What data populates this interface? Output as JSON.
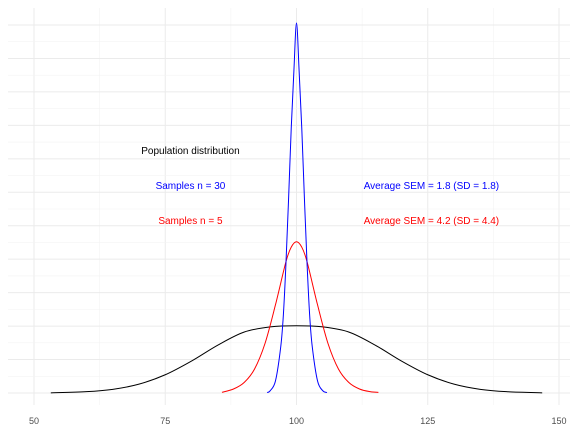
{
  "chart_data": {
    "type": "line",
    "title": "",
    "xlabel": "",
    "ylabel": "",
    "xlim": [
      50,
      150
    ],
    "ylim": [
      0,
      0.228
    ],
    "x_ticks": [
      50,
      75,
      100,
      125,
      150
    ],
    "x_tick_labels": [
      "50",
      "75",
      "100",
      "125",
      "150"
    ],
    "grid": true,
    "legend": "none",
    "series": [
      {
        "color": "#000000",
        "x": [
          53.2,
          60,
          65,
          70,
          75,
          80,
          85,
          90,
          95,
          100,
          105,
          110,
          115,
          120,
          125,
          130,
          135,
          140,
          146.8
        ],
        "y": [
          0.0001,
          0.0008,
          0.0022,
          0.0053,
          0.0109,
          0.0191,
          0.0286,
          0.0364,
          0.0395,
          0.0402,
          0.0395,
          0.0364,
          0.0286,
          0.0191,
          0.0109,
          0.0053,
          0.0022,
          0.0008,
          0.0001
        ]
      },
      {
        "color": "#ff0000",
        "x": [
          85.8,
          88,
          90,
          92,
          94,
          96,
          98,
          99,
          100,
          101,
          102,
          104,
          106,
          108,
          110,
          112,
          114,
          115.6
        ],
        "y": [
          0.0004,
          0.0024,
          0.0062,
          0.0143,
          0.0296,
          0.0528,
          0.0786,
          0.0872,
          0.0904,
          0.0872,
          0.0786,
          0.0528,
          0.0296,
          0.0143,
          0.0062,
          0.0024,
          0.0008,
          0.0004
        ]
      },
      {
        "color": "#0000ff",
        "x": [
          94.4,
          95,
          96,
          97,
          97.5,
          98,
          98.5,
          99,
          99.5,
          100,
          100.5,
          101,
          101.5,
          102,
          102.5,
          103,
          104,
          105,
          105.8
        ],
        "y": [
          0.0003,
          0.0014,
          0.0073,
          0.0277,
          0.0468,
          0.0781,
          0.1169,
          0.1586,
          0.1924,
          0.2212,
          0.1924,
          0.1586,
          0.1169,
          0.0781,
          0.0468,
          0.0277,
          0.0073,
          0.0014,
          0.0003
        ]
      }
    ],
    "annotations": [
      {
        "text": "Population distribution",
        "x": 79.8,
        "y": 0.1446,
        "color": "#000000"
      },
      {
        "text": "Samples n = 30",
        "x": 79.8,
        "y": 0.1236,
        "color": "#0000ff"
      },
      {
        "text": "Samples n = 5",
        "x": 79.8,
        "y": 0.1026,
        "color": "#ff0000"
      },
      {
        "text": "Average SEM = 1.8 (SD = 1.8)",
        "x": 125.7,
        "y": 0.1236,
        "color": "#0000ff"
      },
      {
        "text": "Average SEM = 4.2 (SD = 4.4)",
        "x": 125.7,
        "y": 0.1026,
        "color": "#ff0000"
      }
    ]
  }
}
